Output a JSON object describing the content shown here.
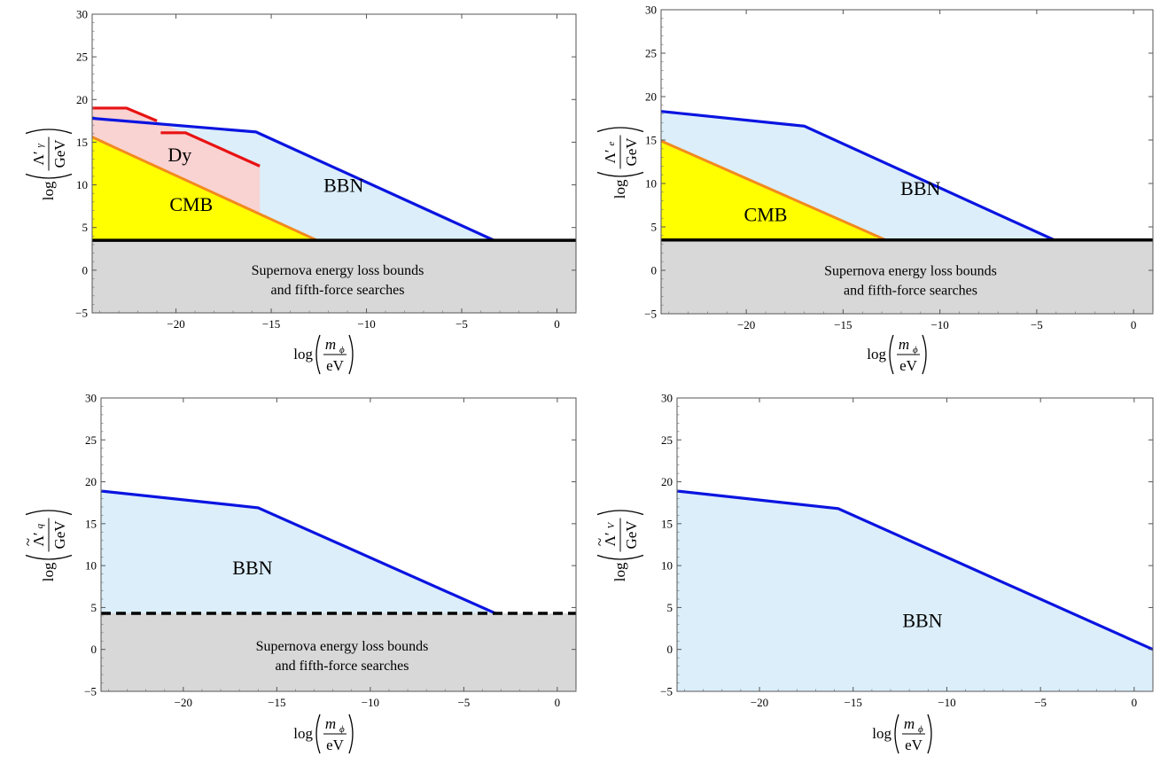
{
  "chart_data": [
    {
      "type": "area",
      "xlim": [
        -24.4,
        1
      ],
      "ylim": [
        -5,
        30
      ],
      "xticks": [
        -20,
        -15,
        -10,
        -5,
        0
      ],
      "yticks": [
        -5,
        0,
        5,
        10,
        15,
        20,
        25,
        30
      ],
      "xlabel": {
        "prefix": "log",
        "num": "m",
        "num_sub": "ϕ",
        "den": "eV"
      },
      "ylabel": {
        "prefix": "log",
        "num": "Λ′",
        "num_sub": "γ",
        "tilde": false,
        "den": "GeV"
      },
      "floor": 3.5,
      "floor_style": "solid",
      "colors": {
        "bbn_fill": "#dbeefa",
        "bbn_line": "#0a14e0",
        "cmb_fill": "#ffff00",
        "cmb_line": "#f28a1e",
        "dy_fill": "#f9d2d2",
        "dy_line": "#e81212",
        "floor_fill": "#d8d8d8",
        "floor_line": "#000000"
      },
      "bbn": {
        "x": [
          -24.4,
          -15.8,
          -3.3
        ],
        "y": [
          17.8,
          16.2,
          3.5
        ]
      },
      "cmb": {
        "x": [
          -24.4,
          -12.6
        ],
        "y": [
          15.6,
          3.5
        ]
      },
      "dy_fill": {
        "x": [
          -24.4,
          -22.6,
          -21.0,
          -15.6,
          -15.6
        ],
        "y": [
          19.0,
          19.0,
          17.5,
          12.2,
          6.8
        ]
      },
      "dy_lines": [
        {
          "x": [
            -24.4,
            -22.6,
            -21.0
          ],
          "y": [
            19.0,
            19.0,
            17.5
          ]
        },
        {
          "x": [
            -20.8,
            -19.5,
            -15.6
          ],
          "y": [
            16.1,
            16.1,
            12.2
          ]
        }
      ],
      "labels": [
        {
          "key": "cmb",
          "text": "CMB",
          "x": -19.2,
          "y": 7.8
        },
        {
          "key": "bbn",
          "text": "BBN",
          "x": -11.2,
          "y": 10.0
        },
        {
          "key": "dy",
          "text": "Dy",
          "x": -19.8,
          "y": 13.6
        }
      ],
      "floor_note": [
        "Supernova energy loss bounds",
        "and fifth-force searches"
      ]
    },
    {
      "type": "area",
      "xlim": [
        -24.4,
        1
      ],
      "ylim": [
        -5,
        30
      ],
      "xticks": [
        -20,
        -15,
        -10,
        -5,
        0
      ],
      "yticks": [
        -5,
        0,
        5,
        10,
        15,
        20,
        25,
        30
      ],
      "xlabel": {
        "prefix": "log",
        "num": "m",
        "num_sub": "ϕ",
        "den": "eV"
      },
      "ylabel": {
        "prefix": "log",
        "num": "Λ′",
        "num_sub": "e",
        "tilde": false,
        "den": "GeV"
      },
      "floor": 3.5,
      "floor_style": "solid",
      "colors": {
        "bbn_fill": "#dbeefa",
        "bbn_line": "#0a14e0",
        "cmb_fill": "#ffff00",
        "cmb_line": "#f28a1e",
        "floor_fill": "#d8d8d8",
        "floor_line": "#000000"
      },
      "bbn": {
        "x": [
          -24.4,
          -17.0,
          -4.1
        ],
        "y": [
          18.3,
          16.6,
          3.5
        ]
      },
      "cmb": {
        "x": [
          -24.4,
          -12.8
        ],
        "y": [
          14.9,
          3.5
        ]
      },
      "labels": [
        {
          "key": "cmb",
          "text": "CMB",
          "x": -19.0,
          "y": 6.5
        },
        {
          "key": "bbn",
          "text": "BBN",
          "x": -11.0,
          "y": 9.5
        }
      ],
      "floor_note": [
        "Supernova energy loss bounds",
        "and fifth-force searches"
      ]
    },
    {
      "type": "area",
      "xlim": [
        -24.4,
        1
      ],
      "ylim": [
        -5,
        30
      ],
      "xticks": [
        -20,
        -15,
        -10,
        -5,
        0
      ],
      "yticks": [
        -5,
        0,
        5,
        10,
        15,
        20,
        25,
        30
      ],
      "xlabel": {
        "prefix": "log",
        "num": "m",
        "num_sub": "ϕ",
        "den": "eV"
      },
      "ylabel": {
        "prefix": "log",
        "num": "Λ′",
        "num_sub": "q",
        "tilde": true,
        "den": "GeV"
      },
      "floor": 4.3,
      "floor_style": "dashed",
      "colors": {
        "bbn_fill": "#dbeefa",
        "bbn_line": "#0a14e0",
        "floor_fill": "#d8d8d8",
        "floor_line": "#000000"
      },
      "bbn": {
        "x": [
          -24.4,
          -16.0,
          -3.3
        ],
        "y": [
          18.9,
          16.9,
          4.3
        ]
      },
      "labels": [
        {
          "key": "bbn",
          "text": "BBN",
          "x": -16.3,
          "y": 9.8
        }
      ],
      "floor_note": [
        "Supernova energy loss bounds",
        "and fifth-force searches"
      ]
    },
    {
      "type": "area",
      "xlim": [
        -24.4,
        1
      ],
      "ylim": [
        -5,
        30
      ],
      "xticks": [
        -20,
        -15,
        -10,
        -5,
        0
      ],
      "yticks": [
        -5,
        0,
        5,
        10,
        15,
        20,
        25,
        30
      ],
      "xlabel": {
        "prefix": "log",
        "num": "m",
        "num_sub": "ϕ",
        "den": "eV"
      },
      "ylabel": {
        "prefix": "log",
        "num": "Λ′",
        "num_sub": "V",
        "tilde": true,
        "den": "GeV"
      },
      "floor": -5,
      "floor_style": "none",
      "colors": {
        "bbn_fill": "#dbeefa",
        "bbn_line": "#0a14e0"
      },
      "bbn": {
        "x": [
          -24.4,
          -15.8,
          1.0
        ],
        "y": [
          18.9,
          16.8,
          0.0
        ]
      },
      "labels": [
        {
          "key": "bbn",
          "text": "BBN",
          "x": -11.3,
          "y": 3.5
        }
      ],
      "floor_note": []
    }
  ]
}
